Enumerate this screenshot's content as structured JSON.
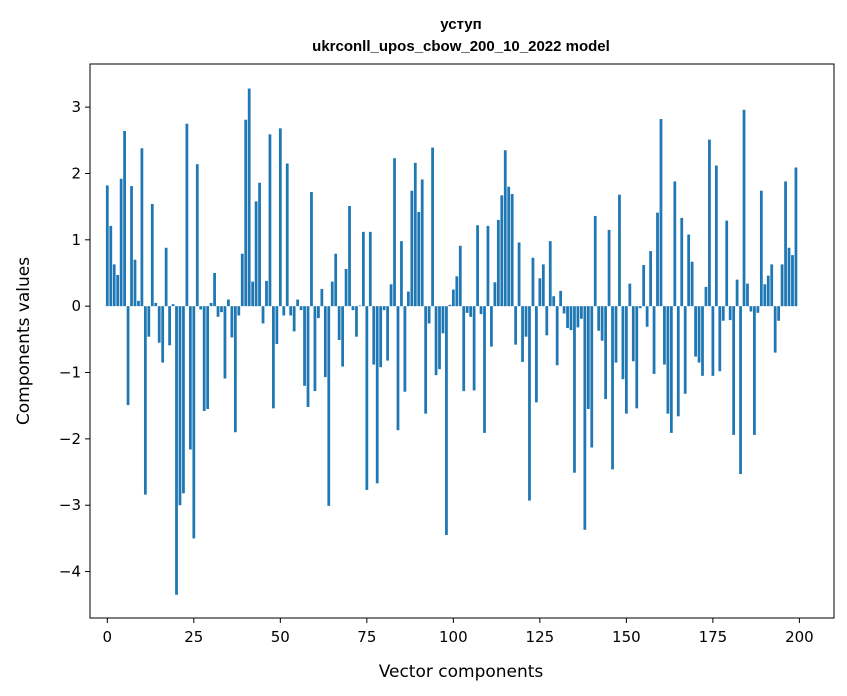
{
  "chart_data": {
    "type": "bar",
    "title": "уступ",
    "subtitle": "ukrconll_upos_cbow_200_10_2022 model",
    "xlabel": "Vector components",
    "ylabel": "Components values",
    "xlim": [
      -5,
      210
    ],
    "ylim": [
      -4.7,
      3.65
    ],
    "xticks": [
      0,
      25,
      50,
      75,
      100,
      125,
      150,
      175,
      200
    ],
    "xtick_labels": [
      "0",
      "25",
      "50",
      "75",
      "100",
      "125",
      "150",
      "175",
      "200"
    ],
    "yticks": [
      -4,
      -3,
      -2,
      -1,
      0,
      1,
      2,
      3
    ],
    "ytick_labels": [
      "−4",
      "−3",
      "−2",
      "−1",
      "0",
      "1",
      "2",
      "3"
    ],
    "bar_color": "#1f77b4",
    "grid": false,
    "values": [
      1.82,
      1.21,
      0.63,
      0.47,
      1.92,
      2.64,
      -1.49,
      1.81,
      0.7,
      0.08,
      2.38,
      -2.84,
      -0.46,
      1.54,
      0.05,
      -0.55,
      -0.85,
      0.88,
      -0.59,
      0.03,
      -4.35,
      -3.0,
      -2.82,
      2.75,
      -2.16,
      -3.5,
      2.14,
      -0.05,
      -1.58,
      -1.55,
      0.05,
      0.5,
      -0.16,
      -0.09,
      -1.09,
      0.1,
      -0.47,
      -1.9,
      -0.14,
      0.79,
      2.81,
      3.28,
      0.37,
      1.58,
      1.86,
      -0.26,
      0.38,
      2.59,
      -1.54,
      -0.57,
      2.68,
      -0.14,
      2.15,
      -0.14,
      -0.38,
      0.1,
      -0.06,
      -1.2,
      -1.52,
      1.72,
      -1.28,
      -0.18,
      0.26,
      -1.07,
      -3.01,
      0.37,
      0.79,
      -0.51,
      -0.91,
      0.56,
      1.51,
      -0.06,
      -0.46,
      0.01,
      1.12,
      -2.77,
      1.12,
      -0.88,
      -2.67,
      -0.92,
      -0.06,
      -0.82,
      0.33,
      2.23,
      -1.87,
      0.98,
      -1.29,
      0.22,
      1.74,
      2.16,
      1.42,
      1.91,
      -1.62,
      -0.26,
      2.39,
      -1.04,
      -0.95,
      -0.41,
      -3.45,
      0.02,
      0.25,
      0.45,
      0.91,
      -1.28,
      -0.1,
      -0.16,
      -1.27,
      1.22,
      -0.12,
      -1.91,
      1.21,
      -0.61,
      0.36,
      1.3,
      1.67,
      2.35,
      1.8,
      1.69,
      -0.58,
      0.96,
      -0.84,
      -0.46,
      -2.93,
      0.73,
      -1.45,
      0.42,
      0.63,
      -0.44,
      0.98,
      0.15,
      -0.89,
      0.23,
      -0.11,
      -0.33,
      -0.36,
      -2.51,
      -0.32,
      -0.19,
      -3.37,
      -1.55,
      -2.13,
      1.36,
      -0.37,
      -0.52,
      -1.4,
      1.15,
      -2.46,
      -0.85,
      1.68,
      -1.1,
      -1.62,
      0.34,
      -0.83,
      -1.54,
      -0.03,
      0.62,
      -0.31,
      0.83,
      -1.02,
      1.41,
      2.82,
      -0.88,
      -1.62,
      -1.91,
      1.88,
      -1.66,
      1.33,
      -1.32,
      1.08,
      0.67,
      -0.76,
      -0.85,
      -1.05,
      0.29,
      2.51,
      -1.05,
      2.12,
      -0.98,
      -0.22,
      1.29,
      -0.21,
      -1.94,
      0.4,
      -2.53,
      2.96,
      0.34,
      -0.08,
      -1.94,
      -0.1,
      1.74,
      0.33,
      0.46,
      0.63,
      -0.7,
      -0.22,
      0.63,
      1.88,
      0.88,
      0.77,
      2.09
    ]
  }
}
